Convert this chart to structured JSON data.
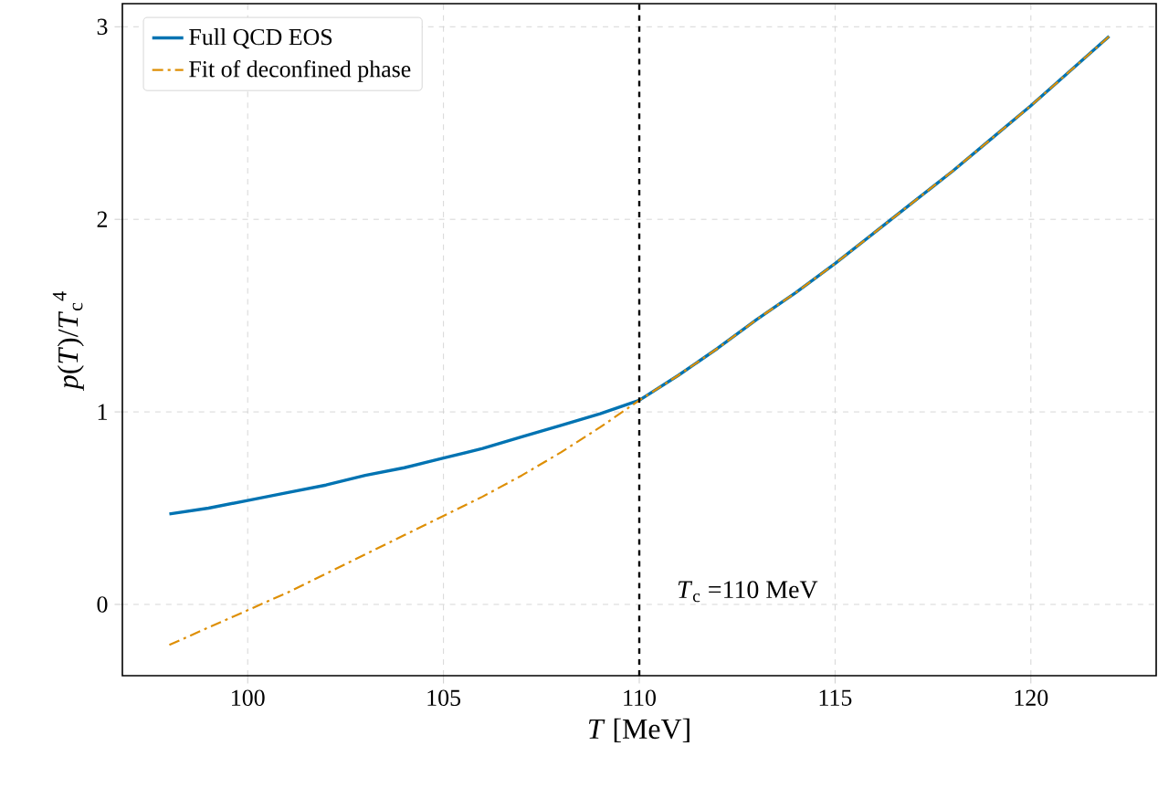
{
  "chart_data": {
    "type": "line",
    "xlabel": "*T* [MeV]",
    "ylabel": "*p*(*T*)/*T*$_{c}$$^{4}$",
    "x": [
      98,
      99,
      100,
      101,
      102,
      103,
      104,
      105,
      106,
      107,
      108,
      109,
      110,
      111,
      112,
      113,
      114,
      115,
      116,
      117,
      118,
      119,
      120,
      121,
      122
    ],
    "series": [
      {
        "name": "Full QCD EOS",
        "color": "#0173b2",
        "line_style": "solid",
        "values": [
          0.47,
          0.5,
          0.54,
          0.58,
          0.62,
          0.67,
          0.71,
          0.76,
          0.81,
          0.87,
          0.93,
          0.99,
          1.06,
          1.19,
          1.33,
          1.48,
          1.62,
          1.77,
          1.93,
          2.09,
          2.25,
          2.42,
          2.59,
          2.77,
          2.95
        ]
      },
      {
        "name": "Fit of deconfined phase",
        "color": "#de8f05",
        "line_style": "dashdot",
        "values": [
          -0.21,
          -0.12,
          -0.03,
          0.06,
          0.16,
          0.26,
          0.36,
          0.46,
          0.56,
          0.67,
          0.79,
          0.92,
          1.06,
          1.19,
          1.33,
          1.48,
          1.62,
          1.77,
          1.93,
          2.09,
          2.25,
          2.42,
          2.59,
          2.77,
          2.95
        ]
      }
    ],
    "xlim": [
      96.8,
      123.2
    ],
    "ylim": [
      -0.37,
      3.12
    ],
    "xticks": [
      100,
      105,
      110,
      115,
      120
    ],
    "yticks": [
      0,
      1,
      2,
      3
    ],
    "grid": true,
    "legend": "top left",
    "ref_lines": [
      {
        "axis": "x",
        "value": 110,
        "color": "#000000",
        "line_style": "dashed"
      }
    ],
    "annotations": [
      "*T*$_{c}$ =110 MeV"
    ]
  }
}
